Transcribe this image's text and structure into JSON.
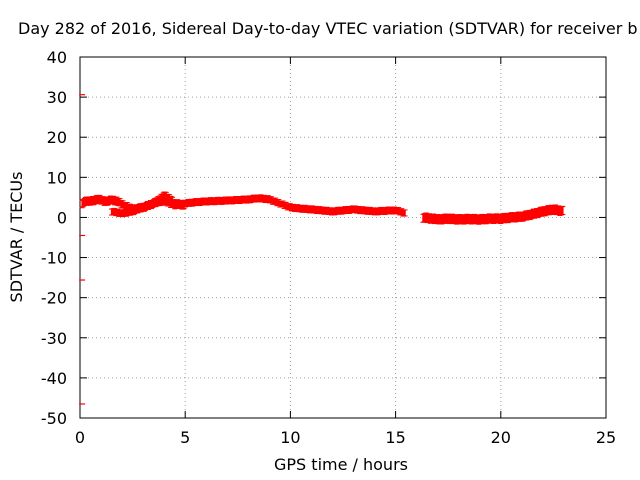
{
  "chart_data": {
    "type": "scatter",
    "title": "Day 282 of 2016, Sidereal Day-to-day VTEC variation (SDTVAR) for receiver b",
    "xlabel": "GPS time / hours",
    "ylabel": "SDTVAR / TECUs",
    "xlim": [
      0,
      25
    ],
    "ylim": [
      -50,
      40
    ],
    "xticks": [
      0,
      5,
      10,
      15,
      20,
      25
    ],
    "yticks": [
      -50,
      -40,
      -30,
      -20,
      -10,
      0,
      10,
      20,
      30,
      40
    ],
    "grid": true,
    "series": [
      {
        "name": "SDTVAR",
        "color": "#ff0000",
        "bands": [
          {
            "x": [
              0.1,
              0.3,
              0.6,
              0.9,
              1.2,
              1.5,
              1.8,
              2.1,
              2.5,
              3.0,
              3.5,
              3.8,
              4.0,
              4.3,
              4.5,
              5.0
            ],
            "y": [
              3.5,
              4.0,
              4.2,
              4.5,
              4.0,
              4.3,
              4.0,
              3.0,
              2.0,
              2.5,
              3.5,
              4.5,
              5.5,
              4.5,
              3.5,
              3.0
            ],
            "spread": 1.8
          },
          {
            "x": [
              1.5,
              2.0,
              2.5,
              3.0,
              3.5,
              4.0,
              4.5,
              5.0,
              5.5,
              6.0,
              7.0,
              8.0,
              8.5,
              9.0,
              9.5,
              10.0,
              10.5,
              11.0,
              12.0,
              13.0,
              14.0,
              15.0,
              15.5
            ],
            "y": [
              1.5,
              1.0,
              1.5,
              2.5,
              3.5,
              4.0,
              3.0,
              3.5,
              3.8,
              4.0,
              4.2,
              4.5,
              4.8,
              4.5,
              3.5,
              2.5,
              2.2,
              2.0,
              1.5,
              2.0,
              1.5,
              1.8,
              1.0
            ],
            "spread": 1.5
          },
          {
            "x": [
              16.3,
              17.0,
              17.5,
              18.0,
              18.5,
              19.0,
              19.5,
              20.0,
              20.5,
              21.0,
              21.5,
              22.0,
              22.5,
              23.0
            ],
            "y": [
              0.0,
              -0.5,
              -0.3,
              -0.5,
              -0.4,
              -0.5,
              -0.3,
              -0.3,
              0.0,
              0.2,
              0.8,
              1.5,
              2.0,
              1.5
            ],
            "spread": 2.0
          }
        ],
        "outliers": [
          {
            "x": 0.1,
            "y": 30.6
          },
          {
            "x": 0.1,
            "y": -4.5
          },
          {
            "x": 0.1,
            "y": -15.6
          },
          {
            "x": 0.1,
            "y": -46.5
          }
        ]
      }
    ]
  }
}
